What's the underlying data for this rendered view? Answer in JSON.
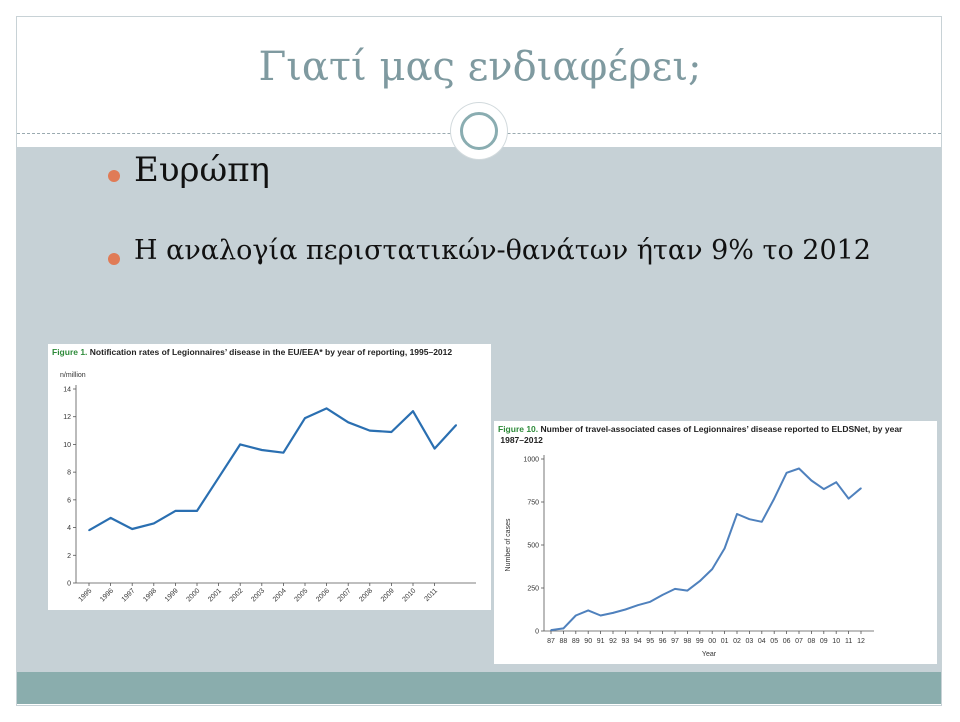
{
  "slide": {
    "title": "Γιατί μας ενδιαφέρει;",
    "bullets": [
      "Ευρώπη",
      "Η αναλογία περιστατικών-θανάτων ήταν 9% το 2012"
    ],
    "colors": {
      "title": "#7f9aa0",
      "content_bg": "#c6d1d6",
      "footer": "#8aadad",
      "bullet": "#e07b56"
    }
  },
  "chart_data": [
    {
      "type": "line",
      "figure_label": "Figure 1.",
      "title": "Notification rates of Legionnaires’ disease in the EU/EEA* by year of reporting, 1995–2012",
      "ylabel": "n/million",
      "xlabel": "",
      "ylim": [
        0,
        14
      ],
      "yticks": [
        0,
        2,
        4,
        6,
        8,
        10,
        12,
        14
      ],
      "categories": [
        "1995",
        "1996",
        "1997",
        "1998",
        "1999",
        "2000",
        "2001",
        "2002",
        "2003",
        "2004",
        "2005",
        "2006",
        "2007",
        "2008",
        "2009",
        "2010",
        "2011",
        "2012"
      ],
      "x_tick_labels": [
        "1995",
        "1996",
        "1997",
        "1998",
        "1999",
        "2000",
        "2001",
        "2002",
        "2003",
        "2004",
        "2005",
        "2006",
        "2007",
        "2008",
        "2009",
        "2010",
        "2011"
      ],
      "values": [
        3.8,
        4.7,
        3.9,
        4.3,
        5.2,
        5.2,
        7.6,
        10.0,
        9.6,
        9.4,
        11.9,
        12.6,
        11.6,
        11.0,
        10.9,
        12.4,
        9.7,
        11.4
      ],
      "color": "#2a6fb1",
      "grid": false
    },
    {
      "type": "line",
      "figure_label": "Figure 10.",
      "title": "Number of travel-associated cases of Legionnaires’ disease reported to ELDSNet, by year, 1987–2012",
      "ylabel": "Number of cases",
      "xlabel": "Year",
      "ylim": [
        0,
        1000
      ],
      "yticks": [
        0,
        250,
        500,
        750,
        1000
      ],
      "categories": [
        "87",
        "88",
        "89",
        "90",
        "91",
        "92",
        "93",
        "94",
        "95",
        "96",
        "97",
        "98",
        "99",
        "00",
        "01",
        "02",
        "03",
        "04",
        "05",
        "06",
        "07",
        "08",
        "09",
        "10",
        "11",
        "12"
      ],
      "values": [
        5,
        15,
        90,
        120,
        90,
        105,
        125,
        150,
        170,
        210,
        245,
        235,
        290,
        360,
        480,
        680,
        650,
        635,
        770,
        920,
        945,
        875,
        825,
        865,
        770,
        830
      ],
      "color": "#4f81bd",
      "grid": false
    }
  ]
}
